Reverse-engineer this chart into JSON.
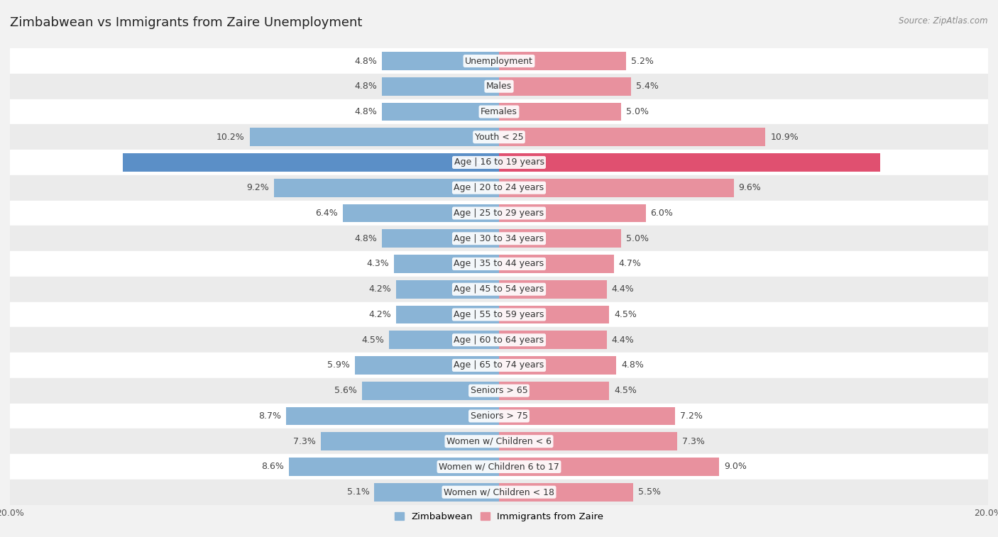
{
  "title": "Zimbabwean vs Immigrants from Zaire Unemployment",
  "source": "Source: ZipAtlas.com",
  "categories": [
    "Unemployment",
    "Males",
    "Females",
    "Youth < 25",
    "Age | 16 to 19 years",
    "Age | 20 to 24 years",
    "Age | 25 to 29 years",
    "Age | 30 to 34 years",
    "Age | 35 to 44 years",
    "Age | 45 to 54 years",
    "Age | 55 to 59 years",
    "Age | 60 to 64 years",
    "Age | 65 to 74 years",
    "Seniors > 65",
    "Seniors > 75",
    "Women w/ Children < 6",
    "Women w/ Children 6 to 17",
    "Women w/ Children < 18"
  ],
  "zimbabwean": [
    4.8,
    4.8,
    4.8,
    10.2,
    15.4,
    9.2,
    6.4,
    4.8,
    4.3,
    4.2,
    4.2,
    4.5,
    5.9,
    5.6,
    8.7,
    7.3,
    8.6,
    5.1
  ],
  "zaire": [
    5.2,
    5.4,
    5.0,
    10.9,
    15.6,
    9.6,
    6.0,
    5.0,
    4.7,
    4.4,
    4.5,
    4.4,
    4.8,
    4.5,
    7.2,
    7.3,
    9.0,
    5.5
  ],
  "zimbabwean_color": "#8ab4d6",
  "zaire_color": "#e8919e",
  "zimbabwean_highlight_color": "#5b8fc7",
  "zaire_highlight_color": "#e05070",
  "xlim": 20.0,
  "row_colors": [
    "#ffffff",
    "#ebebeb"
  ],
  "legend_zim_label": "Zimbabwean",
  "legend_zaire_label": "Immigrants from Zaire",
  "title_fontsize": 13,
  "label_fontsize": 9,
  "value_fontsize": 9
}
